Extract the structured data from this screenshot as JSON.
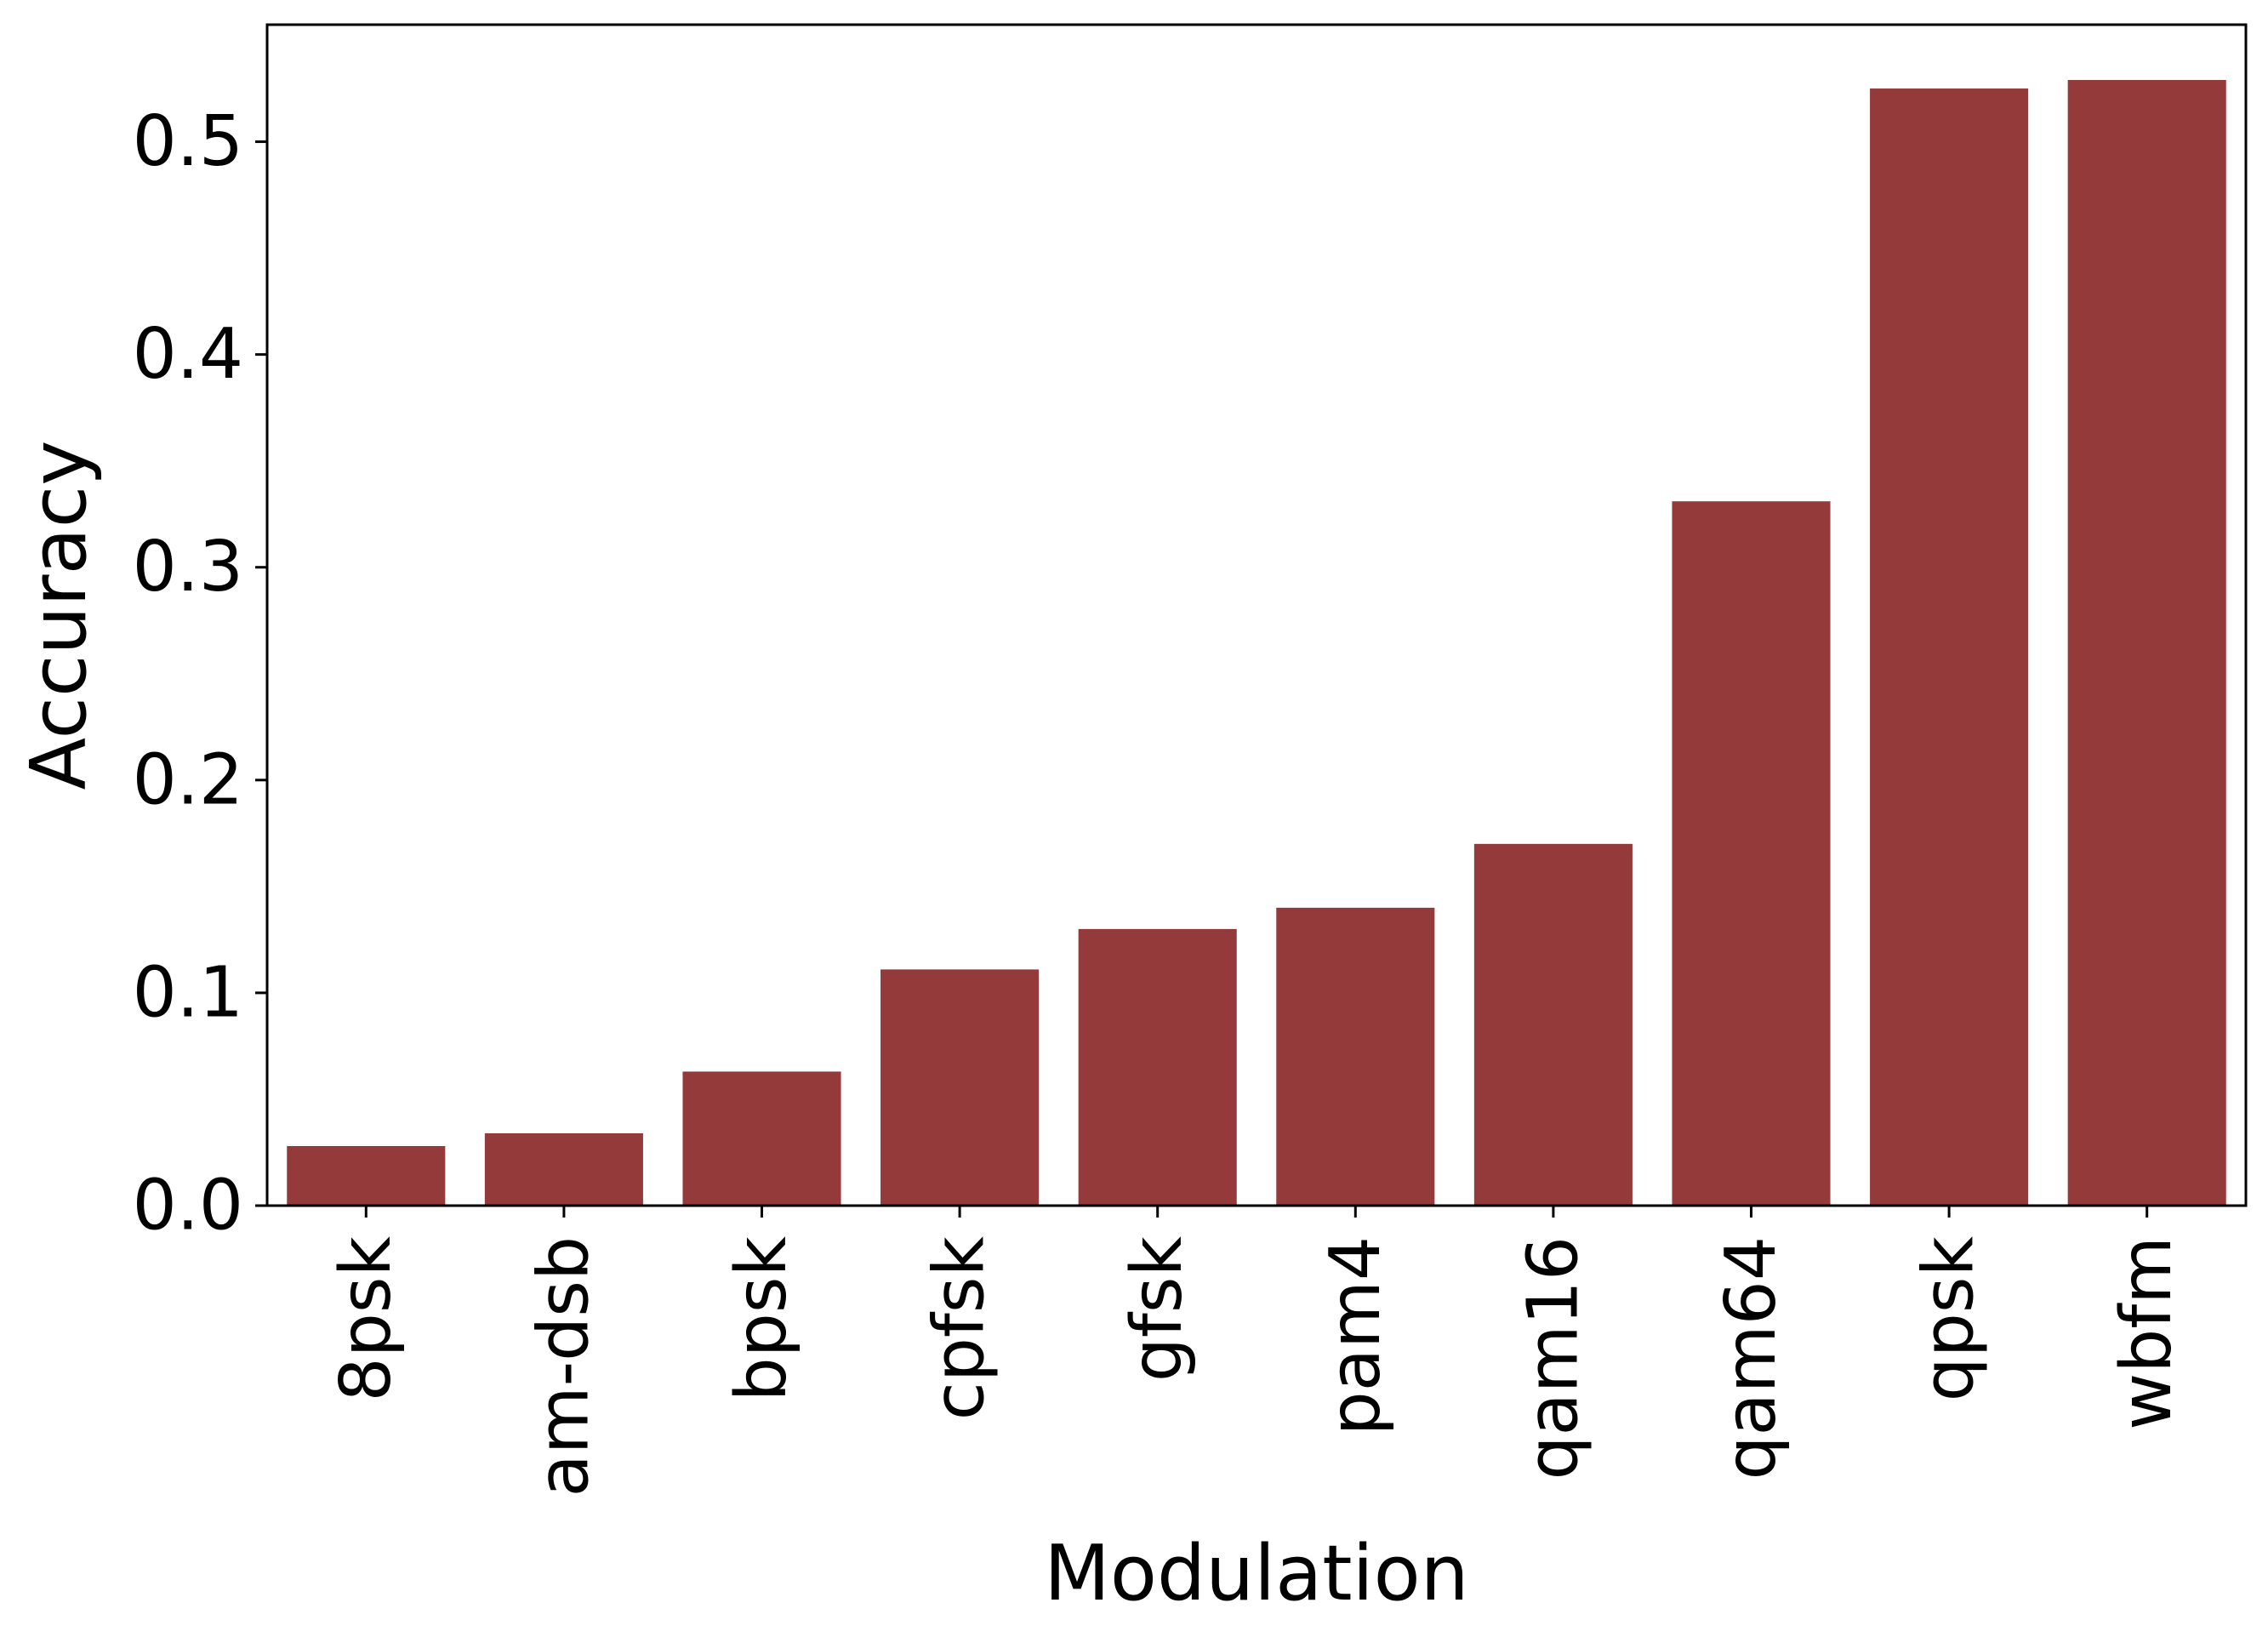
{
  "chart_data": {
    "type": "bar",
    "title": "",
    "xlabel": "Modulation",
    "ylabel": "Accuracy",
    "categories": [
      "8psk",
      "am-dsb",
      "bpsk",
      "cpfsk",
      "gfsk",
      "pam4",
      "qam16",
      "qam64",
      "qpsk",
      "wbfm"
    ],
    "values": [
      0.028,
      0.034,
      0.063,
      0.111,
      0.13,
      0.14,
      0.17,
      0.331,
      0.525,
      0.529
    ],
    "ylim": [
      0,
      0.555
    ],
    "yticks": [
      0.0,
      0.1,
      0.2,
      0.3,
      0.4,
      0.5
    ],
    "ytick_labels": [
      "0.0",
      "0.1",
      "0.2",
      "0.3",
      "0.4",
      "0.5"
    ],
    "bar_color": "#943a3a",
    "grid": false,
    "legend": "none"
  }
}
